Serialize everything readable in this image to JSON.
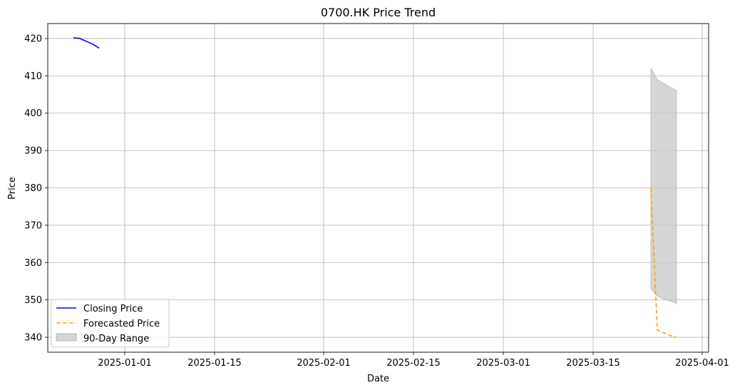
{
  "chart_data": {
    "type": "line",
    "title": "0700.HK Price Trend",
    "xlabel": "Date",
    "ylabel": "Price",
    "x_axis_type": "date",
    "xlim": [
      "2024-12-20",
      "2025-04-02"
    ],
    "ylim": [
      336,
      424
    ],
    "grid": true,
    "legend_position": "lower-left",
    "x_ticks": [
      "2025-01-01",
      "2025-01-15",
      "2025-02-01",
      "2025-02-15",
      "2025-03-01",
      "2025-03-15",
      "2025-04-01"
    ],
    "y_ticks": [
      340,
      350,
      360,
      370,
      380,
      390,
      400,
      410,
      420
    ],
    "series": [
      {
        "name": "Closing Price",
        "style": "solid",
        "color": "#0000ff",
        "x": [
          "2024-12-24",
          "2024-12-25",
          "2024-12-27",
          "2024-12-28"
        ],
        "values": [
          420.2,
          420.0,
          418.5,
          417.4
        ]
      },
      {
        "name": "Forecasted Price",
        "style": "dashed",
        "color": "#ffa500",
        "x": [
          "2025-03-24",
          "2025-03-25",
          "2025-03-26",
          "2025-03-27",
          "2025-03-28"
        ],
        "values": [
          380.0,
          342.0,
          341.2,
          340.5,
          340.0
        ]
      }
    ],
    "range": {
      "name": "90-Day Range",
      "color": "#c8c8c8",
      "x": [
        "2025-03-24",
        "2025-03-25",
        "2025-03-26",
        "2025-03-27",
        "2025-03-28"
      ],
      "upper": [
        412.0,
        409.0,
        408.0,
        407.0,
        406.0
      ],
      "lower": [
        353.0,
        351.0,
        350.3,
        349.7,
        349.0
      ]
    }
  }
}
